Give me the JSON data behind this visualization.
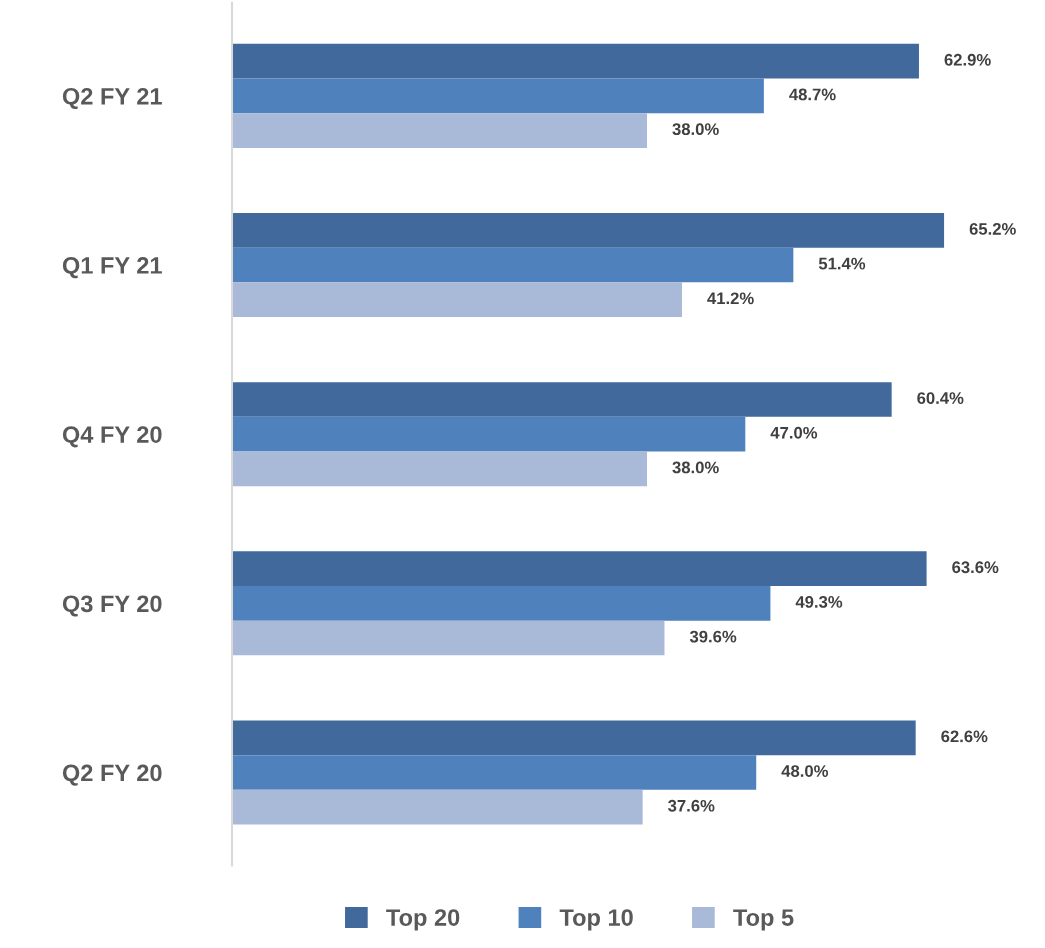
{
  "chart_data": {
    "type": "bar",
    "orientation": "horizontal",
    "categories": [
      "Q2 FY 21",
      "Q1 FY 21",
      "Q4 FY 20",
      "Q3 FY 20",
      "Q2 FY 20"
    ],
    "series": [
      {
        "name": "Top 20",
        "color": "#41699b",
        "values": [
          62.9,
          65.2,
          60.4,
          63.6,
          62.6
        ],
        "value_labels": [
          "62.9%",
          "65.2%",
          "60.4%",
          "63.6%",
          "62.6%"
        ]
      },
      {
        "name": "Top 10",
        "color": "#4f81bd",
        "values": [
          48.7,
          51.4,
          47.0,
          49.3,
          48.0
        ],
        "value_labels": [
          "48.7%",
          "51.4%",
          "47.0%",
          "49.3%",
          "48.0%"
        ]
      },
      {
        "name": "Top 5",
        "color": "#a9b9d8",
        "values": [
          38.0,
          41.2,
          38.0,
          39.6,
          37.6
        ],
        "value_labels": [
          "38.0%",
          "41.2%",
          "38.0%",
          "39.6%",
          "37.6%"
        ]
      }
    ],
    "tick_labels": "y",
    "grid": false,
    "legend": "bottom"
  }
}
